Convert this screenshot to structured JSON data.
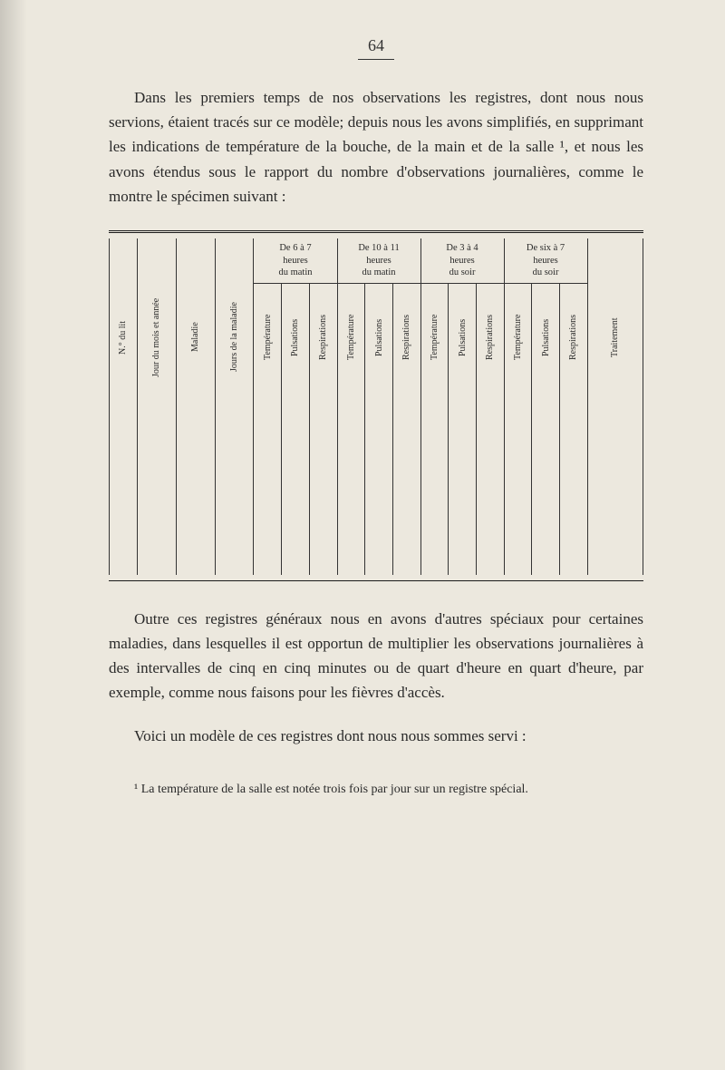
{
  "page_number": "64",
  "paragraph_1": "Dans les premiers temps de nos observations les regis­tres, dont nous nous servions, étaient tracés sur ce modèle; depuis nous les avons simplifiés, en supprimant les indica­tions de température de la bouche, de la main et de la salle ¹, et nous les avons étendus sous le rapport du nom­bre d'observations journalières, comme le montre le spéci­men suivant :",
  "paragraph_2": "Outre ces registres généraux nous en avons d'autres spé­ciaux pour certaines maladies, dans lesquelles il est oppor­tun de multiplier les observations journalières à des inter­valles de cinq en cinq minutes ou de quart d'heure en quart d'heure, par exemple, comme nous faisons pour les fièvres d'accès.",
  "paragraph_3": "Voici un modèle de ces registres dont nous nous som­mes servi :",
  "footnote": "¹ La température de la salle est notée trois fois par jour sur un re­gistre spécial.",
  "table": {
    "fixed_columns": [
      "N.° du lit",
      "Jour du mois et année",
      "Maladie",
      "Jours de la maladie"
    ],
    "time_groups": [
      {
        "header_line1": "De 6 à 7",
        "header_line2": "heures",
        "header_line3": "du matin"
      },
      {
        "header_line1": "De 10 à 11",
        "header_line2": "heures",
        "header_line3": "du matin"
      },
      {
        "header_line1": "De 3 à 4",
        "header_line2": "heures",
        "header_line3": "du soir"
      },
      {
        "header_line1": "De six à 7",
        "header_line2": "heures",
        "header_line3": "du soir"
      }
    ],
    "sub_columns": [
      "Température",
      "Pulsations",
      "Respirations"
    ],
    "last_column": "Traitement"
  },
  "colors": {
    "page_bg": "#ece8de",
    "text": "#2a2a2a",
    "border": "#1a1a1a"
  }
}
